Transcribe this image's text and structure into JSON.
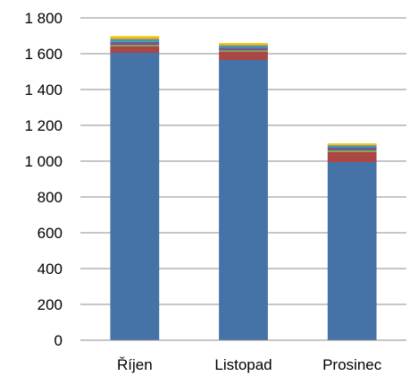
{
  "chart_data": {
    "type": "bar",
    "stacked": true,
    "categories": [
      "Říjen",
      "Listopad",
      "Prosinec"
    ],
    "series": [
      {
        "color": "#4572a7",
        "values": [
          1605,
          1565,
          995
        ]
      },
      {
        "color": "#aa4643",
        "values": [
          35,
          45,
          55
        ]
      },
      {
        "color": "#89a54e",
        "values": [
          8,
          8,
          10
        ]
      },
      {
        "color": "#71588f",
        "values": [
          18,
          15,
          15
        ]
      },
      {
        "color": "#4198af",
        "values": [
          15,
          12,
          12
        ]
      },
      {
        "color": "#db843d",
        "values": [
          4,
          4,
          4
        ]
      },
      {
        "color": "#e8c400",
        "values": [
          13,
          10,
          8
        ]
      }
    ],
    "yticks": [
      "0",
      "200",
      "400",
      "600",
      "800",
      "1 000",
      "1 200",
      "1 400",
      "1 600",
      "1 800"
    ],
    "ylim": [
      0,
      1800
    ],
    "grid": true,
    "legend": "none",
    "title": "",
    "xlabel": "",
    "ylabel": ""
  }
}
